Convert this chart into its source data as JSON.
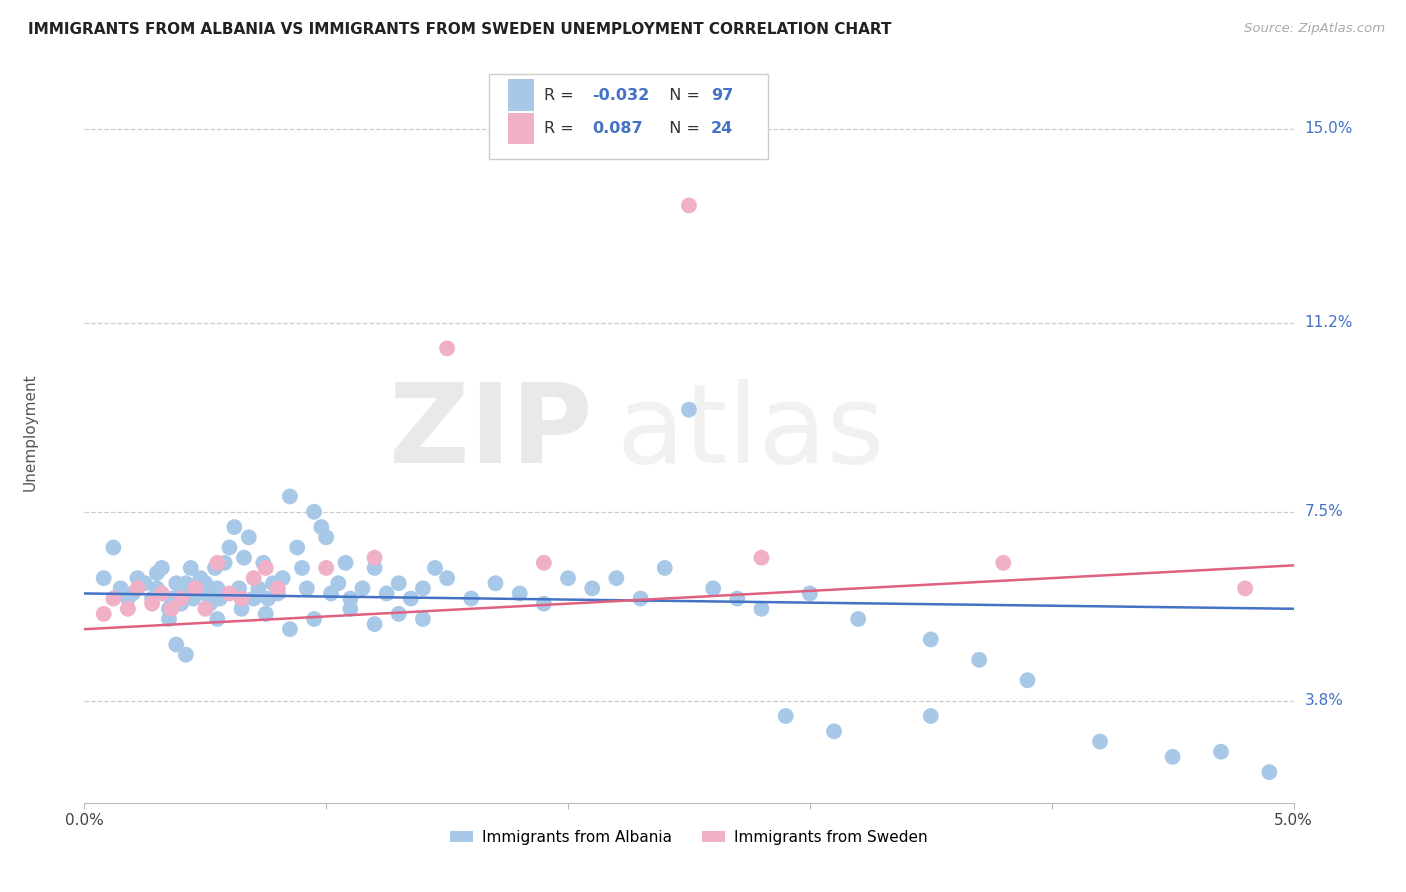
{
  "title": "IMMIGRANTS FROM ALBANIA VS IMMIGRANTS FROM SWEDEN UNEMPLOYMENT CORRELATION CHART",
  "source": "Source: ZipAtlas.com",
  "ylabel": "Unemployment",
  "ytick_labels": [
    "15.0%",
    "11.2%",
    "7.5%",
    "3.8%"
  ],
  "ytick_values": [
    0.15,
    0.112,
    0.075,
    0.038
  ],
  "xmin": 0.0,
  "xmax": 0.05,
  "ymin": 0.018,
  "ymax": 0.163,
  "color_albania": "#a8c8e8",
  "color_sweden": "#f0b0c8",
  "color_blue": "#4472C4",
  "color_pink": "#E06080",
  "trendline_alb_y0": 0.059,
  "trendline_alb_y1": 0.056,
  "trendline_swe_y0": 0.052,
  "trendline_swe_y1": 0.0645,
  "albania_x": [
    0.0008,
    0.0012,
    0.0015,
    0.0018,
    0.002,
    0.0022,
    0.0025,
    0.0028,
    0.003,
    0.003,
    0.0032,
    0.0035,
    0.0036,
    0.0038,
    0.004,
    0.004,
    0.0042,
    0.0044,
    0.0045,
    0.0046,
    0.0048,
    0.005,
    0.005,
    0.0052,
    0.0054,
    0.0055,
    0.0056,
    0.0058,
    0.006,
    0.0062,
    0.0064,
    0.0065,
    0.0066,
    0.0068,
    0.007,
    0.0072,
    0.0074,
    0.0076,
    0.0078,
    0.008,
    0.0082,
    0.0085,
    0.0088,
    0.009,
    0.0092,
    0.0095,
    0.0098,
    0.01,
    0.0102,
    0.0105,
    0.0108,
    0.011,
    0.0115,
    0.012,
    0.0125,
    0.013,
    0.0135,
    0.014,
    0.0145,
    0.015,
    0.016,
    0.017,
    0.018,
    0.019,
    0.02,
    0.021,
    0.022,
    0.023,
    0.024,
    0.025,
    0.026,
    0.027,
    0.028,
    0.03,
    0.032,
    0.035,
    0.037,
    0.039,
    0.042,
    0.045,
    0.047,
    0.049,
    0.0035,
    0.0038,
    0.0042,
    0.0055,
    0.0065,
    0.0075,
    0.0085,
    0.0095,
    0.011,
    0.012,
    0.013,
    0.014,
    0.029,
    0.031,
    0.035
  ],
  "albania_y": [
    0.062,
    0.068,
    0.06,
    0.058,
    0.059,
    0.062,
    0.061,
    0.058,
    0.063,
    0.06,
    0.064,
    0.056,
    0.058,
    0.061,
    0.059,
    0.057,
    0.061,
    0.064,
    0.058,
    0.06,
    0.062,
    0.059,
    0.061,
    0.057,
    0.064,
    0.06,
    0.058,
    0.065,
    0.068,
    0.072,
    0.06,
    0.058,
    0.066,
    0.07,
    0.058,
    0.06,
    0.065,
    0.058,
    0.061,
    0.059,
    0.062,
    0.078,
    0.068,
    0.064,
    0.06,
    0.075,
    0.072,
    0.07,
    0.059,
    0.061,
    0.065,
    0.058,
    0.06,
    0.064,
    0.059,
    0.061,
    0.058,
    0.06,
    0.064,
    0.062,
    0.058,
    0.061,
    0.059,
    0.057,
    0.062,
    0.06,
    0.062,
    0.058,
    0.064,
    0.095,
    0.06,
    0.058,
    0.056,
    0.059,
    0.054,
    0.05,
    0.046,
    0.042,
    0.03,
    0.027,
    0.028,
    0.024,
    0.054,
    0.049,
    0.047,
    0.054,
    0.056,
    0.055,
    0.052,
    0.054,
    0.056,
    0.053,
    0.055,
    0.054,
    0.035,
    0.032,
    0.035
  ],
  "sweden_x": [
    0.0008,
    0.0012,
    0.0018,
    0.0022,
    0.0028,
    0.0032,
    0.0036,
    0.004,
    0.0046,
    0.005,
    0.0055,
    0.006,
    0.0065,
    0.007,
    0.0075,
    0.008,
    0.01,
    0.012,
    0.015,
    0.019,
    0.025,
    0.028,
    0.038,
    0.048
  ],
  "sweden_y": [
    0.055,
    0.058,
    0.056,
    0.06,
    0.057,
    0.059,
    0.056,
    0.058,
    0.06,
    0.056,
    0.065,
    0.059,
    0.058,
    0.062,
    0.064,
    0.06,
    0.064,
    0.066,
    0.107,
    0.065,
    0.135,
    0.066,
    0.065,
    0.06
  ]
}
